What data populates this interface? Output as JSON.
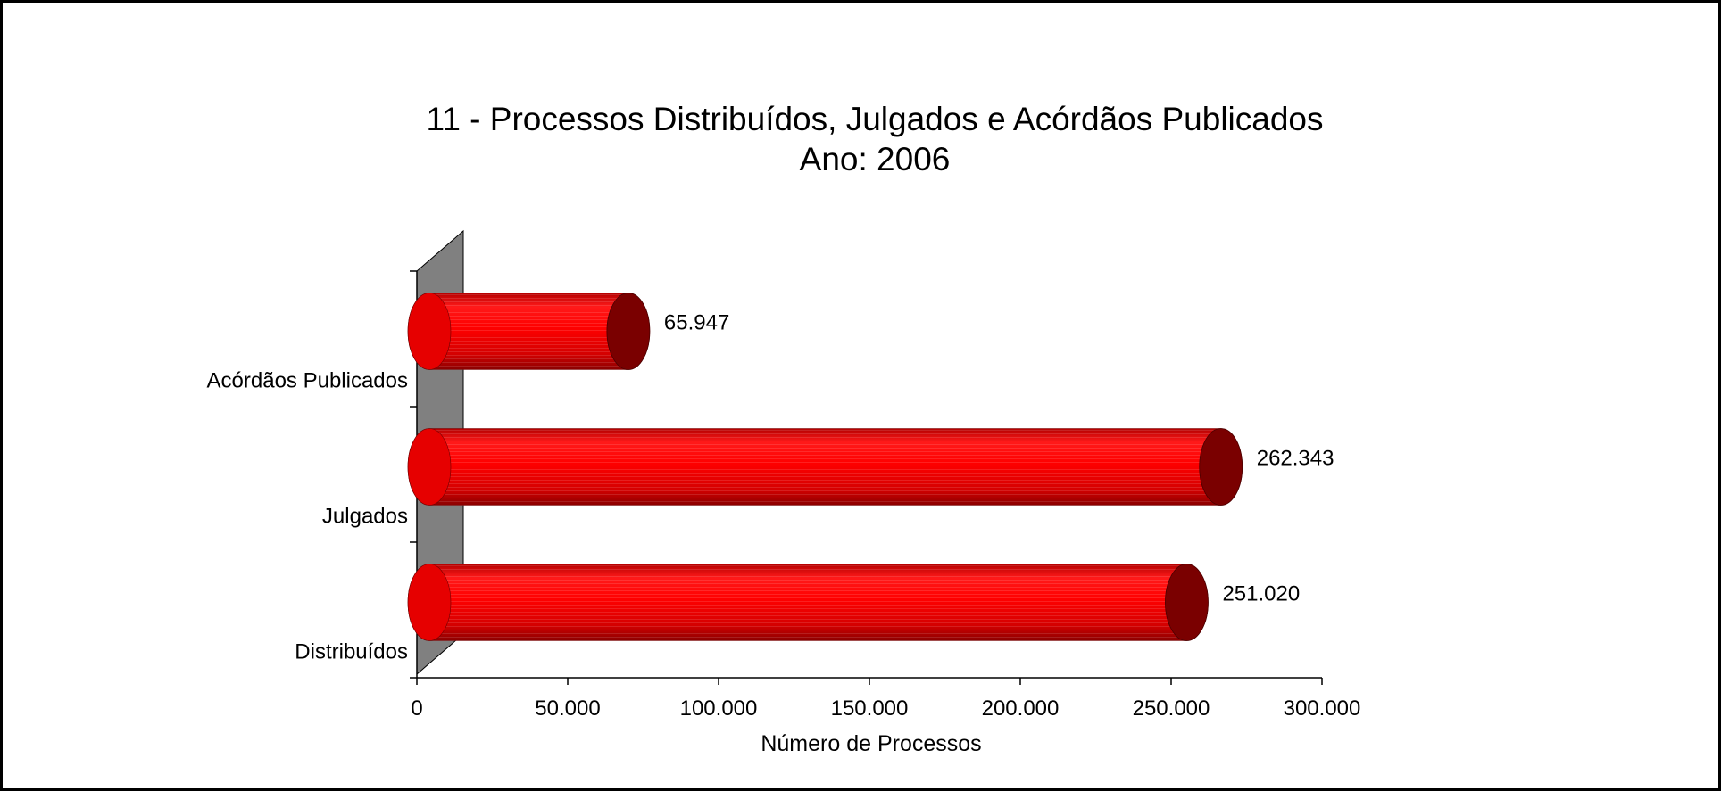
{
  "chart_data": {
    "type": "bar",
    "orientation": "horizontal",
    "style": "3d-cylinder",
    "title": "11 - Processos Distribuídos, Julgados e Acórdãos Publicados",
    "subtitle": "Ano: 2006",
    "xlabel": "Número de Processos",
    "ylabel": "",
    "categories": [
      "Distribuídos",
      "Julgados",
      "Acórdãos Publicados"
    ],
    "values": [
      251020,
      262343,
      65947
    ],
    "data_labels": [
      "251.020",
      "262.343",
      "65.947"
    ],
    "xlim": [
      0,
      300000
    ],
    "x_ticks": [
      0,
      50000,
      100000,
      150000,
      200000,
      250000,
      300000
    ],
    "x_tick_labels": [
      "0",
      "50.000",
      "100.000",
      "150.000",
      "200.000",
      "250.000",
      "300.000"
    ],
    "grid": false,
    "legend": "none",
    "colors": {
      "bar": "#ff0000",
      "bar_dark": "#7a0000",
      "wall": "#808080",
      "axis": "#000000"
    }
  }
}
